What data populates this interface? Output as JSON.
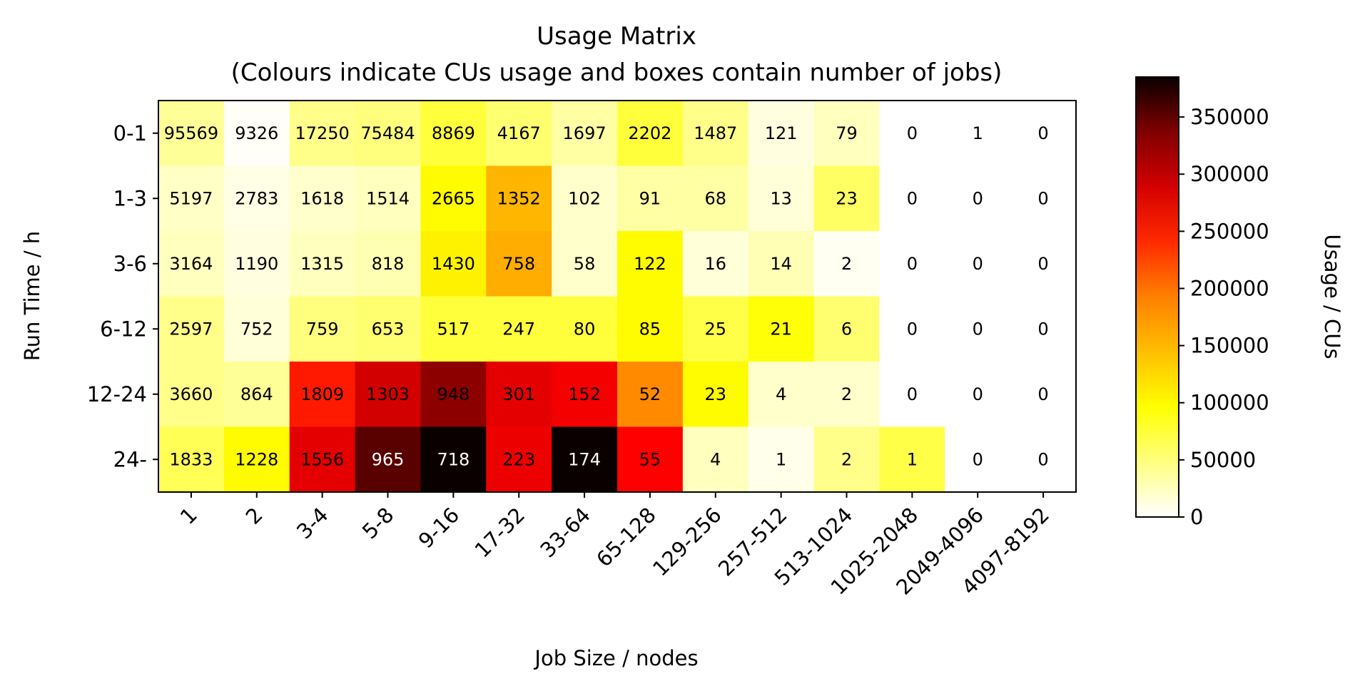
{
  "chart_data": {
    "type": "heatmap",
    "title": "Usage Matrix",
    "subtitle": "(Colours indicate CUs usage and boxes contain number of jobs)",
    "xlabel": "Job Size / nodes",
    "ylabel": "Run Time / h",
    "colorbar_label": "Usage / CUs",
    "colormap": "hot_r",
    "colorbar_range": [
      0,
      385000
    ],
    "colorbar_ticks": [
      "0",
      "50000",
      "100000",
      "150000",
      "200000",
      "250000",
      "300000",
      "350000"
    ],
    "x_categories": [
      "1",
      "2",
      "3-4",
      "5-8",
      "9-16",
      "17-32",
      "33-64",
      "65-128",
      "129-256",
      "257-512",
      "513-1024",
      "1025-2048",
      "2049-4096",
      "4097-8192"
    ],
    "y_categories": [
      "0-1",
      "1-3",
      "3-6",
      "6-12",
      "12-24",
      "24-"
    ],
    "job_counts": [
      [
        "95569",
        "9326",
        "17250",
        "75484",
        "8869",
        "4167",
        "1697",
        "2202",
        "1487",
        "121",
        "79",
        "0",
        "1",
        "0"
      ],
      [
        "5197",
        "2783",
        "1618",
        "1514",
        "2665",
        "1352",
        "102",
        "91",
        "68",
        "13",
        "23",
        "0",
        "0",
        "0"
      ],
      [
        "3164",
        "1190",
        "1315",
        "818",
        "1430",
        "758",
        "58",
        "122",
        "16",
        "14",
        "2",
        "0",
        "0",
        "0"
      ],
      [
        "2597",
        "752",
        "759",
        "653",
        "517",
        "247",
        "80",
        "85",
        "25",
        "21",
        "6",
        "0",
        "0",
        "0"
      ],
      [
        "3660",
        "864",
        "1809",
        "1303",
        "948",
        "301",
        "152",
        "52",
        "23",
        "4",
        "2",
        "0",
        "0",
        "0"
      ],
      [
        "1833",
        "1228",
        "1556",
        "965",
        "718",
        "223",
        "174",
        "55",
        "4",
        "1",
        "2",
        "1",
        "0",
        "0"
      ]
    ],
    "usage": [
      [
        40000,
        3000,
        45000,
        50000,
        75000,
        55000,
        35000,
        75000,
        45000,
        12000,
        25000,
        0,
        0,
        0
      ],
      [
        22000,
        10000,
        20000,
        25000,
        100000,
        140000,
        20000,
        35000,
        35000,
        15000,
        60000,
        0,
        0,
        0
      ],
      [
        25000,
        12000,
        25000,
        30000,
        105000,
        145000,
        20000,
        100000,
        15000,
        28000,
        5000,
        0,
        0,
        0
      ],
      [
        45000,
        15000,
        50000,
        55000,
        75000,
        75000,
        75000,
        100000,
        70000,
        95000,
        55000,
        0,
        0,
        0
      ],
      [
        45000,
        40000,
        230000,
        270000,
        310000,
        260000,
        250000,
        165000,
        100000,
        20000,
        20000,
        0,
        0,
        0
      ],
      [
        65000,
        100000,
        260000,
        340000,
        385000,
        255000,
        385000,
        245000,
        25000,
        8000,
        45000,
        70000,
        0,
        0
      ]
    ]
  }
}
